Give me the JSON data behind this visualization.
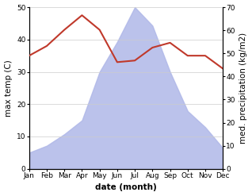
{
  "months": [
    "Jan",
    "Feb",
    "Mar",
    "Apr",
    "May",
    "Jun",
    "Jul",
    "Aug",
    "Sep",
    "Oct",
    "Nov",
    "Dec"
  ],
  "temp": [
    35,
    38,
    43,
    47.5,
    43,
    33,
    33.5,
    37.5,
    39,
    35,
    35,
    31
  ],
  "precip": [
    7,
    10,
    15,
    21,
    42,
    55,
    70,
    62,
    42,
    25,
    18,
    9
  ],
  "temp_color": "#c0392b",
  "precip_color": "#b0b8e8",
  "ylim_left": [
    0,
    50
  ],
  "ylim_right": [
    0,
    70
  ],
  "ylabel_left": "max temp (C)",
  "ylabel_right": "med. precipitation (kg/m2)",
  "xlabel": "date (month)",
  "axis_fontsize": 7.5,
  "tick_fontsize": 6.5,
  "bg_color": "#ffffff"
}
